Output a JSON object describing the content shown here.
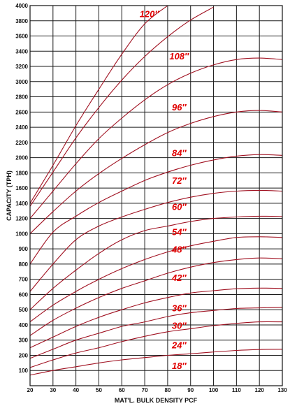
{
  "chart_data": {
    "type": "line",
    "title": "",
    "xlabel": "MAT'L. BULK DENSITY PCF",
    "ylabel": "CAPACITY (TPH)",
    "xlim": [
      20,
      130
    ],
    "ylim": [
      0,
      4000
    ],
    "xticks": [
      "20",
      "30",
      "40",
      "50",
      "60",
      "70",
      "80",
      "90",
      "100",
      "110",
      "120",
      "130"
    ],
    "yticks": [
      "100",
      "200",
      "300",
      "400",
      "500",
      "600",
      "700",
      "800",
      "900",
      "1000",
      "1200",
      "1400",
      "1600",
      "1800",
      "2000",
      "2200",
      "2400",
      "2600",
      "2800",
      "3000",
      "3200",
      "3400",
      "3600",
      "3800",
      "4000"
    ],
    "line_color": "#a01020",
    "label_color": "#e00000",
    "grid": true,
    "x": [
      20,
      30,
      40,
      50,
      60,
      70,
      80,
      90,
      100,
      110,
      120,
      130
    ],
    "series": [
      {
        "name": "18″",
        "label_at": [
          85,
          110
        ],
        "values": [
          70,
          100,
          125,
          150,
          170,
          185,
          200,
          210,
          222,
          232,
          238,
          240
        ]
      },
      {
        "name": "24″",
        "label_at": [
          85,
          245
        ],
        "values": [
          120,
          170,
          215,
          250,
          290,
          325,
          355,
          375,
          395,
          410,
          420,
          420
        ]
      },
      {
        "name": "30″",
        "label_at": [
          85,
          375
        ],
        "values": [
          180,
          240,
          300,
          345,
          390,
          420,
          455,
          480,
          495,
          508,
          512,
          515
        ]
      },
      {
        "name": "36″",
        "label_at": [
          85,
          490
        ],
        "values": [
          250,
          320,
          390,
          450,
          500,
          545,
          580,
          610,
          625,
          638,
          642,
          640
        ]
      },
      {
        "name": "42″",
        "label_at": [
          85,
          690
        ],
        "values": [
          330,
          430,
          510,
          580,
          640,
          690,
          740,
          780,
          810,
          830,
          840,
          835
        ]
      },
      {
        "name": "48″",
        "label_at": [
          85,
          875
        ],
        "values": [
          420,
          530,
          620,
          700,
          770,
          830,
          880,
          920,
          950,
          975,
          980,
          975
        ]
      },
      {
        "name": "54″",
        "label_at": [
          85,
          990
        ],
        "values": [
          500,
          640,
          760,
          870,
          960,
          1040,
          1100,
          1160,
          1200,
          1220,
          1230,
          1225
        ]
      },
      {
        "name": "60″",
        "label_at": [
          85,
          1310
        ],
        "values": [
          620,
          800,
          960,
          1100,
          1220,
          1320,
          1410,
          1480,
          1530,
          1560,
          1570,
          1560
        ]
      },
      {
        "name": "72″",
        "label_at": [
          85,
          1655
        ],
        "values": [
          800,
          1020,
          1230,
          1410,
          1560,
          1700,
          1810,
          1900,
          1970,
          2020,
          2040,
          2030
        ]
      },
      {
        "name": "84″",
        "label_at": [
          85,
          2020
        ],
        "values": [
          1000,
          1290,
          1560,
          1790,
          1990,
          2170,
          2330,
          2450,
          2540,
          2600,
          2620,
          2600
        ]
      },
      {
        "name": "96″",
        "label_at": [
          85,
          2620
        ],
        "values": [
          1200,
          1560,
          1920,
          2250,
          2520,
          2760,
          2960,
          3110,
          3220,
          3290,
          3310,
          3290
        ]
      },
      {
        "name": "108″",
        "label_at": [
          85,
          3290
        ],
        "values": [
          1360,
          1810,
          2260,
          2660,
          3020,
          3330,
          3590,
          3810,
          3980,
          null,
          null,
          null
        ]
      },
      {
        "name": "120″",
        "label_at": [
          72,
          3850
        ],
        "values": [
          1400,
          1900,
          2420,
          2900,
          3360,
          3760,
          4000,
          null,
          null,
          null,
          null,
          null
        ]
      }
    ]
  }
}
